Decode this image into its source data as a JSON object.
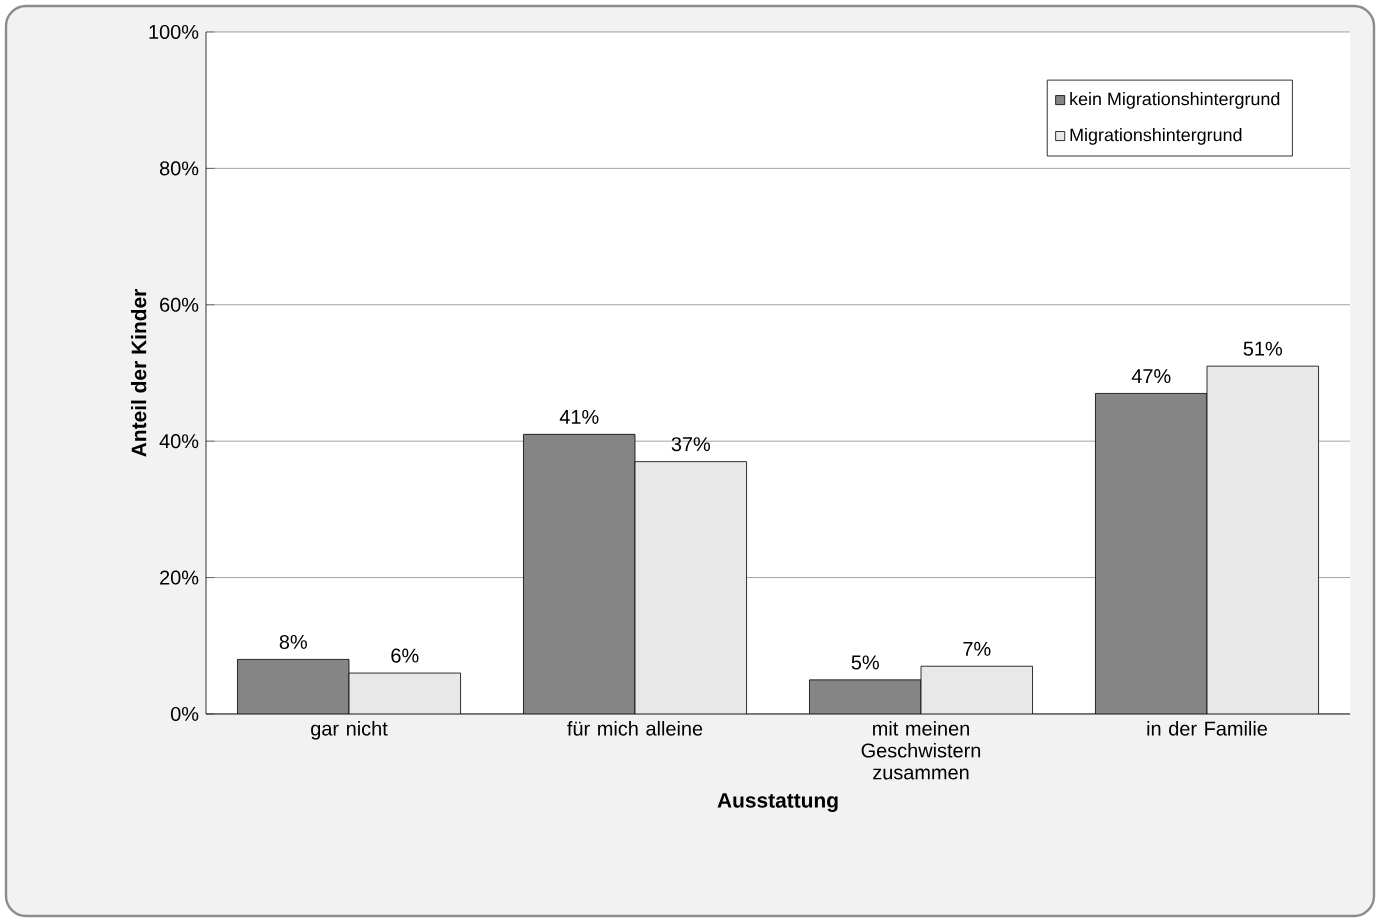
{
  "chart_data": {
    "type": "bar",
    "xlabel": "Ausstattung",
    "ylabel": "Anteil der Kinder",
    "categories": [
      "gar nicht",
      "für mich alleine",
      "mit meinen Geschwistern zusammen",
      "in der Familie"
    ],
    "series": [
      {
        "name": "kein Migrationshintergrund",
        "color": "#858585",
        "values": [
          8,
          41,
          5,
          47
        ],
        "value_labels": [
          "8%",
          "41%",
          "5%",
          "47%"
        ]
      },
      {
        "name": "Migrationshintergrund",
        "color": "#e8e8e8",
        "values": [
          6,
          37,
          7,
          51
        ],
        "value_labels": [
          "6%",
          "37%",
          "7%",
          "51%"
        ]
      }
    ],
    "ylim": [
      0,
      100
    ],
    "yticks": [
      {
        "value": 0,
        "label": "0%"
      },
      {
        "value": 20,
        "label": "20%"
      },
      {
        "value": 40,
        "label": "40%"
      },
      {
        "value": 60,
        "label": "60%"
      },
      {
        "value": 80,
        "label": "80%"
      },
      {
        "value": 100,
        "label": "100%"
      }
    ],
    "grid": "y",
    "legend": "top right"
  }
}
